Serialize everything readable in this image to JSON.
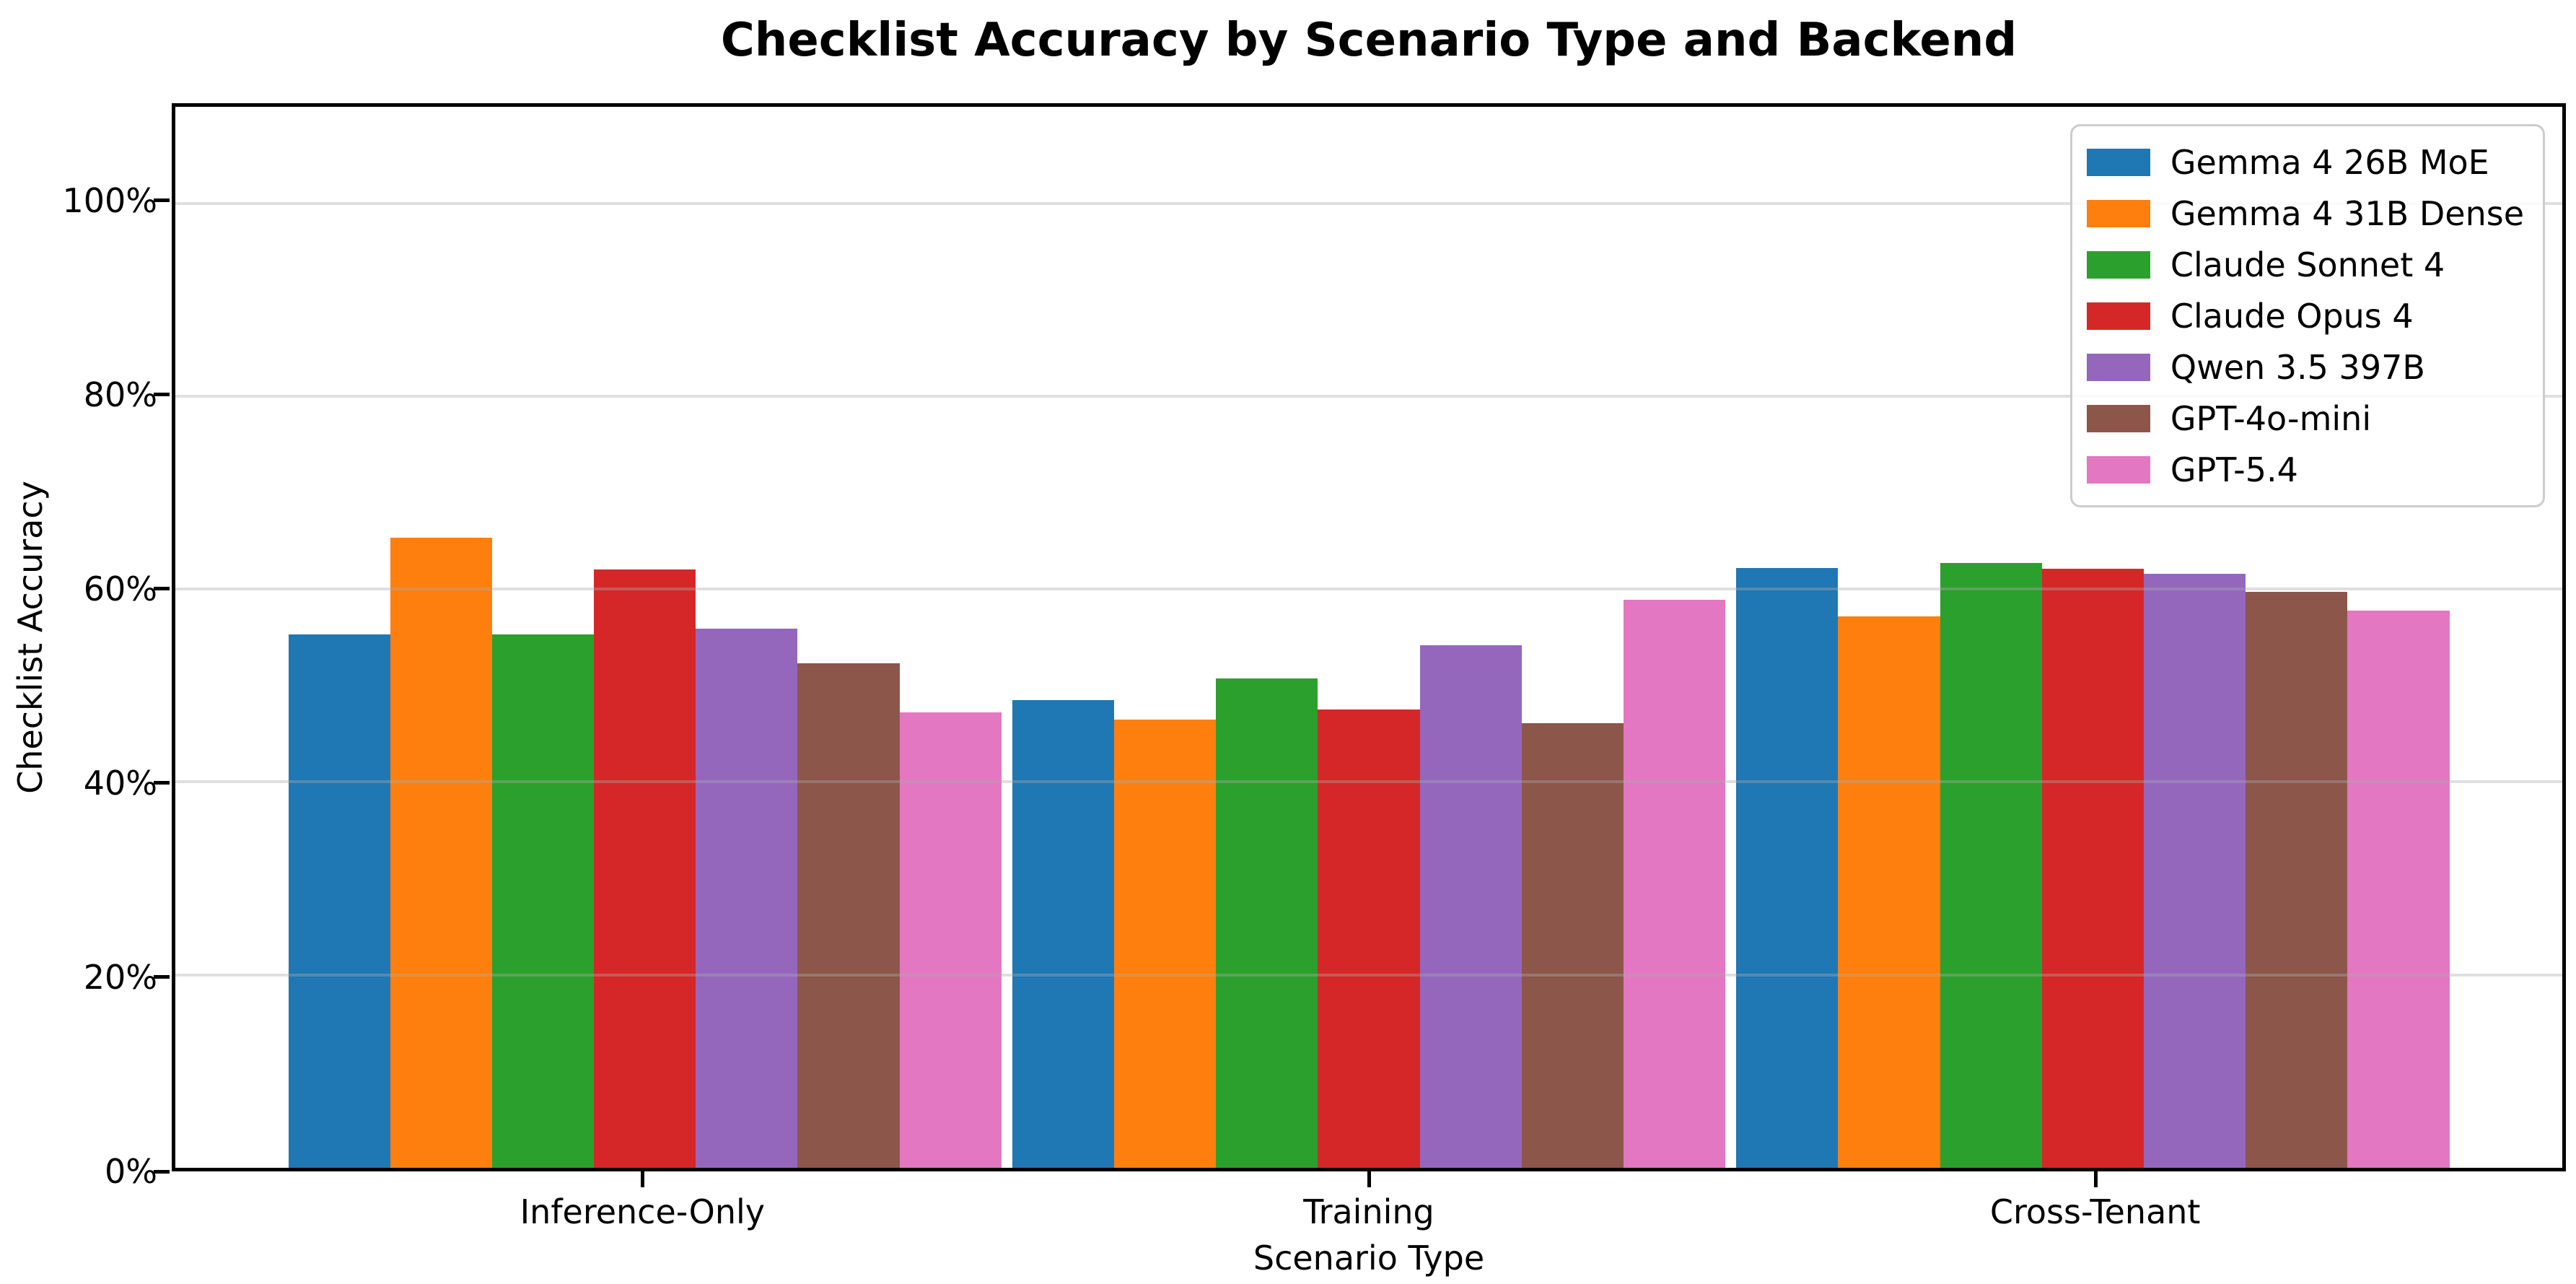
{
  "figure": {
    "title": "Checklist Accuracy by Scenario Type and Backend",
    "xlabel": "Scenario Type",
    "ylabel": "Checklist Accuracy"
  },
  "chart_data": {
    "type": "bar",
    "title": "Checklist Accuracy by Scenario Type and Backend",
    "xlabel": "Scenario Type",
    "ylabel": "Checklist Accuracy",
    "categories": [
      "Inference-Only",
      "Training",
      "Cross-Tenant"
    ],
    "series": [
      {
        "name": "Gemma 4 26B MoE",
        "color": "#1f77b4",
        "values": [
          55.3,
          48.5,
          62.2
        ]
      },
      {
        "name": "Gemma 4 31B Dense",
        "color": "#ff7f0e",
        "values": [
          65.3,
          46.5,
          57.2
        ]
      },
      {
        "name": "Claude Sonnet 4",
        "color": "#2ca02c",
        "values": [
          55.3,
          50.7,
          62.7
        ]
      },
      {
        "name": "Claude Opus 4",
        "color": "#d62728",
        "values": [
          62.0,
          47.5,
          62.1
        ]
      },
      {
        "name": "Qwen 3.5 397B",
        "color": "#9467bd",
        "values": [
          55.9,
          54.2,
          61.6
        ]
      },
      {
        "name": "GPT-4o-mini",
        "color": "#8c564b",
        "values": [
          52.3,
          46.1,
          59.7
        ]
      },
      {
        "name": "GPT-5.4",
        "color": "#e377c2",
        "values": [
          47.2,
          58.9,
          57.8
        ]
      }
    ],
    "ylim": [
      0,
      110
    ],
    "yticks": [
      {
        "value": 0,
        "label": "0%"
      },
      {
        "value": 20,
        "label": "20%"
      },
      {
        "value": 40,
        "label": "40%"
      },
      {
        "value": 60,
        "label": "60%"
      },
      {
        "value": 80,
        "label": "80%"
      },
      {
        "value": 100,
        "label": "100%"
      }
    ],
    "grid": "horizontal-lines-at-yticks-drawn-over-bars",
    "legend_position": "upper right",
    "value_format": "percent"
  }
}
